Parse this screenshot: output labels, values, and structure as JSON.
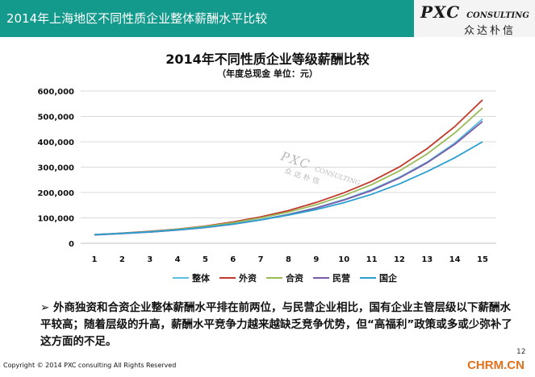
{
  "header": {
    "title": "2014年上海地区不同性质企业整体薪酬水平比较",
    "logo_main": "PXC",
    "logo_suffix": "CONSULTING",
    "logo_sub": "众达朴信",
    "bg_color": "#139a8c"
  },
  "watermark": {
    "main": "PXC",
    "suffix": "CONSULTING",
    "sub": "众达朴信"
  },
  "chart_data": {
    "type": "line",
    "title": "2014年不同性质企业等级薪酬比较",
    "subtitle": "（年度总现金 单位：元）",
    "xlabel": "",
    "ylabel": "",
    "x": [
      1,
      2,
      3,
      4,
      5,
      6,
      7,
      8,
      9,
      10,
      11,
      12,
      13,
      14,
      15
    ],
    "ylim": [
      0,
      600000
    ],
    "yticks": [
      0,
      100000,
      200000,
      300000,
      400000,
      500000,
      600000
    ],
    "ytick_labels": [
      "0",
      "100,000",
      "200,000",
      "300,000",
      "400,000",
      "500,000",
      "600,000"
    ],
    "grid": true,
    "legend_position": "bottom",
    "series": [
      {
        "name": "整体",
        "color": "#5bc0de",
        "values": [
          34000,
          39000,
          45000,
          53000,
          63000,
          76000,
          93000,
          114000,
          140000,
          172000,
          211000,
          260000,
          320000,
          395000,
          490000
        ]
      },
      {
        "name": "外资",
        "color": "#c0392b",
        "values": [
          34000,
          40000,
          47000,
          56000,
          68000,
          84000,
          104000,
          129000,
          161000,
          199000,
          244000,
          301000,
          373000,
          460000,
          565000
        ]
      },
      {
        "name": "合资",
        "color": "#9bbb59",
        "values": [
          33000,
          39000,
          46000,
          55000,
          66000,
          81000,
          100000,
          123000,
          152000,
          188000,
          231000,
          285000,
          352000,
          435000,
          533000
        ]
      },
      {
        "name": "民营",
        "color": "#7a5ba8",
        "values": [
          33000,
          38000,
          44000,
          52000,
          62000,
          75000,
          92000,
          113000,
          139000,
          170000,
          208000,
          257000,
          317000,
          390000,
          480000
        ]
      },
      {
        "name": "国企",
        "color": "#2a9fd0",
        "values": [
          34000,
          39000,
          45000,
          53000,
          63000,
          76000,
          92000,
          111000,
          133000,
          160000,
          193000,
          234000,
          283000,
          337000,
          400000
        ]
      }
    ]
  },
  "summary": {
    "bullet": "➢",
    "text": "外商独资和合资企业整体薪酬水平排在前两位，与民营企业相比，国有企业主管层级以下薪酬水平较高；随着层级的升高，薪酬水平竞争力越来越缺乏竞争优势，但“高福利”政策或多或少弥补了这方面的不足。"
  },
  "footer": {
    "copyright": "Copyright © 2014  PXC consulting All Rights Reserved",
    "page_number": "12",
    "site": "CHRM.CN"
  }
}
